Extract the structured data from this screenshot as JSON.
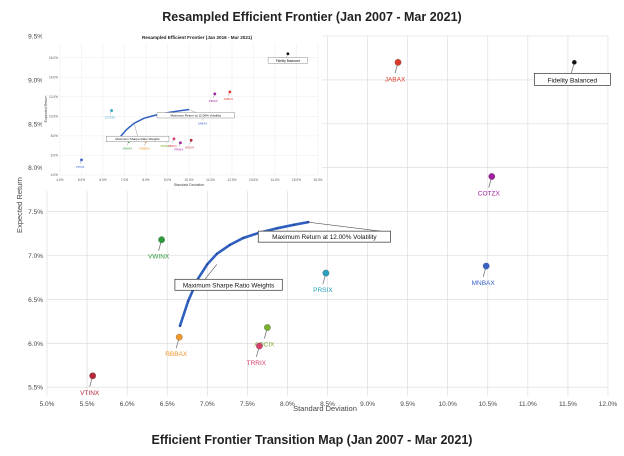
{
  "chart_data": {
    "type": "scatter",
    "title": "Resampled Efficient Frontier (Jan 2007 - Mar 2021)",
    "xlabel": "Standard Deviation",
    "ylabel": "Expected Return",
    "xlim": [
      0.05,
      0.12
    ],
    "ylim": [
      0.054,
      0.095
    ],
    "x_ticks": [
      "5.0%",
      "5.5%",
      "6.0%",
      "6.5%",
      "7.0%",
      "7.5%",
      "8.0%",
      "8.5%",
      "9.0%",
      "9.5%",
      "10.0%",
      "10.5%",
      "11.0%",
      "11.5%",
      "12.0%"
    ],
    "y_ticks": [
      "5.5%",
      "6.0%",
      "6.5%",
      "7.0%",
      "7.5%",
      "8.0%",
      "8.5%",
      "9.0%",
      "9.5%"
    ],
    "grid": true,
    "frontier": {
      "x": [
        0.0666,
        0.0676,
        0.0688,
        0.07,
        0.0712,
        0.0728,
        0.0745,
        0.0765,
        0.0787,
        0.0808,
        0.0826
      ],
      "y": [
        0.062,
        0.0648,
        0.0673,
        0.069,
        0.0702,
        0.0712,
        0.072,
        0.0726,
        0.0731,
        0.0735,
        0.0738
      ],
      "color": "#2f5fbf"
    },
    "points": [
      {
        "label": "JABAX",
        "x": 0.0938,
        "y": 0.092,
        "color": "#d93a2b"
      },
      {
        "label": "Fidelity Balanced",
        "x": 0.1158,
        "y": 0.092,
        "color": "#111111",
        "boxed": true
      },
      {
        "label": "COTZX",
        "x": 0.1055,
        "y": 0.079,
        "color": "#a020a0"
      },
      {
        "label": "VWINX",
        "x": 0.0643,
        "y": 0.0718,
        "color": "#2e9a3a"
      },
      {
        "label": "MNBAX",
        "x": 0.1048,
        "y": 0.0688,
        "color": "#3a63c9"
      },
      {
        "label": "PRSIX",
        "x": 0.0848,
        "y": 0.068,
        "color": "#2aa0c0"
      },
      {
        "label": "AOCIX",
        "x": 0.0775,
        "y": 0.0618,
        "color": "#7ab22e"
      },
      {
        "label": "RBBAX",
        "x": 0.0665,
        "y": 0.0607,
        "color": "#f0962a"
      },
      {
        "label": "TRRIX",
        "x": 0.0765,
        "y": 0.0597,
        "color": "#d6416a"
      },
      {
        "label": "VTINX",
        "x": 0.0557,
        "y": 0.0563,
        "color": "#b5283a"
      }
    ],
    "annotations": [
      {
        "text": "Maximum Return at 12.00% Volatility",
        "x": 0.0826,
        "y": 0.0738
      },
      {
        "text": "Maximum Sharpe Ratio Weights",
        "x": 0.0712,
        "y": 0.069
      }
    ],
    "inset": {
      "title": "Resampled Efficient Frontier (Jan 2016 - Mar 2021)",
      "xlabel": "Standard Deviation",
      "ylabel": "Expected Return",
      "xlim": [
        0.04,
        0.16
      ],
      "ylim": [
        0.04,
        0.175
      ],
      "x_ticks": [
        "4.0%",
        "5.0%",
        "6.0%",
        "7.0%",
        "8.0%",
        "9.0%",
        "10.0%",
        "11.0%",
        "12.0%",
        "13.0%",
        "14.0%",
        "15.0%",
        "16.0%"
      ],
      "y_ticks": [
        "4.0%",
        "6.0%",
        "8.0%",
        "10.0%",
        "12.0%",
        "14.0%",
        "16.0%"
      ],
      "frontier": {
        "x": [
          0.068,
          0.071,
          0.0745,
          0.079,
          0.084,
          0.0895,
          0.095,
          0.1
        ],
        "y": [
          0.079,
          0.0865,
          0.093,
          0.098,
          0.101,
          0.1035,
          0.1055,
          0.107
        ]
      },
      "points": [
        {
          "label": "VTINX",
          "x": 0.05,
          "y": 0.0555,
          "color": "#3a63c9"
        },
        {
          "label": "COTZX",
          "x": 0.064,
          "y": 0.106,
          "color": "#2aa0c0"
        },
        {
          "label": "VWINX",
          "x": 0.072,
          "y": 0.0745,
          "color": "#2e9a3a"
        },
        {
          "label": "RBBAX",
          "x": 0.08,
          "y": 0.0745,
          "color": "#f0962a"
        },
        {
          "label": "MNBAX",
          "x": 0.09,
          "y": 0.077,
          "color": "#7ab22e"
        },
        {
          "label": "TRRIX",
          "x": 0.093,
          "y": 0.077,
          "color": "#d6416a"
        },
        {
          "label": "PRSIX",
          "x": 0.096,
          "y": 0.073,
          "color": "#a020a0"
        },
        {
          "label": "AOCIX",
          "x": 0.101,
          "y": 0.0755,
          "color": "#b5283a"
        },
        {
          "label": "JABAX",
          "x": 0.107,
          "y": 0.1,
          "color": "#3a63c9"
        },
        {
          "label": "PRSIX",
          "x": 0.112,
          "y": 0.123,
          "color": "#a020a0"
        },
        {
          "label": "JABAX",
          "x": 0.119,
          "y": 0.125,
          "color": "#d93a2b"
        },
        {
          "label": "Fidelity Balanced",
          "x": 0.146,
          "y": 0.164,
          "color": "#111111",
          "boxed": true
        }
      ],
      "annotations": [
        {
          "text": "Maximum Return at 12.00% Volatility",
          "x": 0.1,
          "y": 0.107
        },
        {
          "text": "Maximum Sharpe Ratio Weights",
          "x": 0.0745,
          "y": 0.093
        }
      ]
    }
  },
  "footer_title": "Efficient Frontier Transition Map (Jan 2007 - Mar 2021)"
}
